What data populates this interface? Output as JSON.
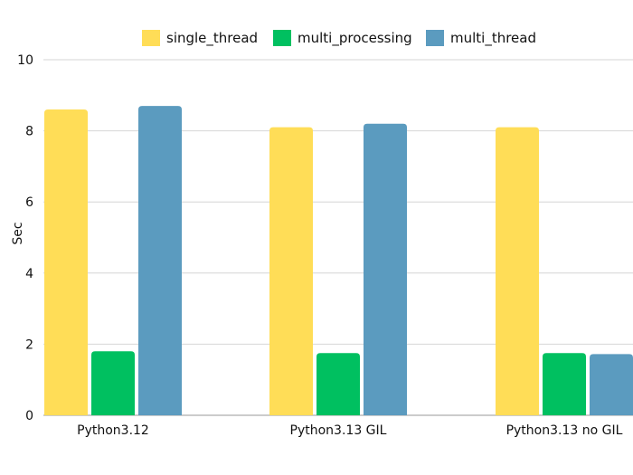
{
  "chart_data": {
    "type": "bar",
    "title": "",
    "xlabel": "",
    "ylabel": "Sec",
    "ylim": [
      0,
      10
    ],
    "yticks": [
      0,
      2,
      4,
      6,
      8,
      10
    ],
    "grid": true,
    "legend_position": "top",
    "categories": [
      "Python3.12",
      "Python3.13 GIL",
      "Python3.13 no GIL"
    ],
    "series": [
      {
        "name": "single_thread",
        "color": "#FFDD57",
        "values": [
          8.6,
          8.1,
          8.1
        ]
      },
      {
        "name": "multi_processing",
        "color": "#00C060",
        "values": [
          1.8,
          1.75,
          1.75
        ]
      },
      {
        "name": "multi_thread",
        "color": "#5B9BBF",
        "values": [
          8.7,
          8.2,
          1.72
        ]
      }
    ]
  }
}
